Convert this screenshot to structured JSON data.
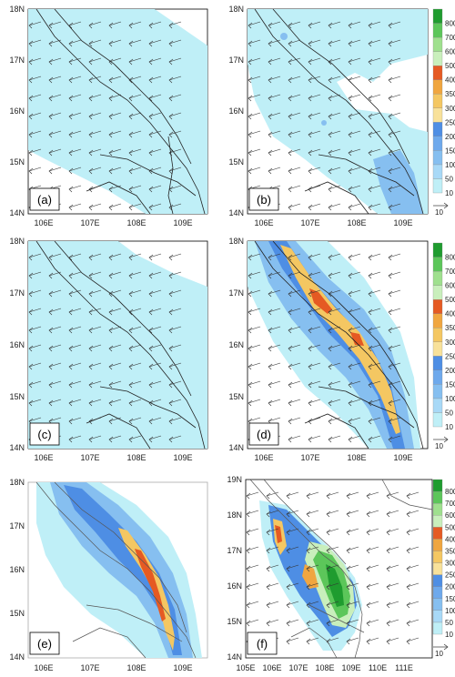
{
  "colors": {
    "c10": "#bfeff7",
    "c50": "#a8d9f7",
    "c100": "#86bff0",
    "c150": "#6ea9ec",
    "c200": "#4e8ee4",
    "c250": "#f8e19a",
    "c300": "#f4c762",
    "c350": "#f0a640",
    "c400": "#e55a23",
    "c500": "#c9efbc",
    "c600": "#9fe08e",
    "c700": "#5cc65a",
    "c800": "#1f9c2f"
  },
  "colorbar": {
    "levels": [
      "10",
      "50",
      "100",
      "150",
      "200",
      "250",
      "300",
      "350",
      "400",
      "500",
      "600",
      "700",
      "800"
    ],
    "vector_ref": "10"
  },
  "panels": [
    {
      "label": "(a)",
      "lat": [
        "18N",
        "17N",
        "16N",
        "15N",
        "14N"
      ],
      "lon": [
        "106E",
        "107E",
        "108E",
        "109E"
      ]
    },
    {
      "label": "(b)",
      "lat": [
        "18N",
        "17N",
        "16N",
        "15N",
        "14N"
      ],
      "lon": [
        "106E",
        "107E",
        "108E",
        "109E"
      ]
    },
    {
      "label": "(c)",
      "lat": [
        "18N",
        "17N",
        "16N",
        "15N",
        "14N"
      ],
      "lon": [
        "106E",
        "107E",
        "108E",
        "109E"
      ]
    },
    {
      "label": "(d)",
      "lat": [
        "18N",
        "17N",
        "16N",
        "15N",
        "14N"
      ],
      "lon": [
        "106E",
        "107E",
        "108E",
        "109E"
      ]
    },
    {
      "label": "(e)",
      "lat": [
        "18N",
        "17N",
        "16N",
        "15N",
        "14N"
      ],
      "lon": [
        "106E",
        "107E",
        "108E",
        "109E"
      ]
    },
    {
      "label": "(f)",
      "lat": [
        "19N",
        "18N",
        "17N",
        "16N",
        "15N",
        "14N"
      ],
      "lon": [
        "105E",
        "106E",
        "107E",
        "108E",
        "109E",
        "110E",
        "111E"
      ]
    }
  ]
}
